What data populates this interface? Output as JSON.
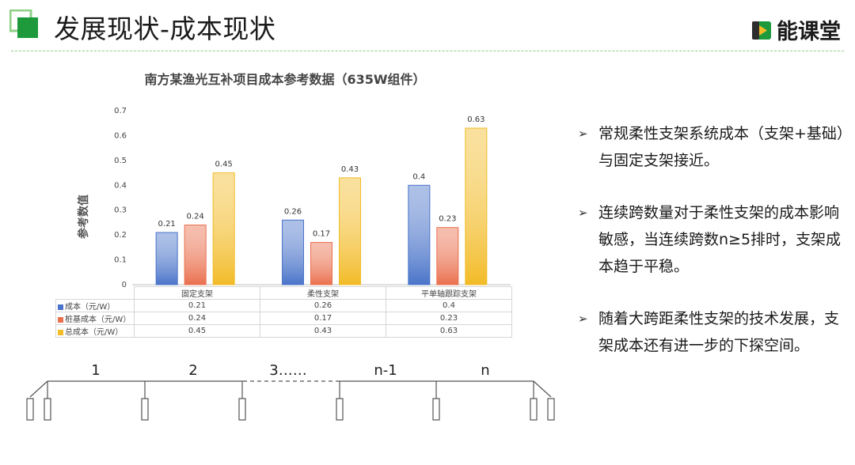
{
  "header": {
    "title": "发展现状-成本现状",
    "brand": "能课堂",
    "accent_green": "#1e9a3c",
    "light_green": "#8fcf86"
  },
  "chart_data": {
    "type": "bar",
    "title": "南方某渔光互补项目成本参考数据（635W组件）",
    "ylabel": "参考数值",
    "xlabel": "",
    "ylim": [
      0,
      0.7
    ],
    "yticks": [
      "0",
      "0.1",
      "0.2",
      "0.3",
      "0.4",
      "0.5",
      "0.6",
      "0.7"
    ],
    "grid": false,
    "categories": [
      "固定支架",
      "柔性支架",
      "平单轴跟踪支架"
    ],
    "series": [
      {
        "name": "成本（元/W）",
        "values": [
          0.21,
          0.26,
          0.4
        ],
        "labels": [
          "0.21",
          "0.26",
          "0.4"
        ],
        "color": "#4a74c9"
      },
      {
        "name": "桩基成本（元/W）",
        "values": [
          0.24,
          0.17,
          0.23
        ],
        "labels": [
          "0.24",
          "0.17",
          "0.23"
        ],
        "color": "#ea6f4d"
      },
      {
        "name": "总成本（元/W）",
        "values": [
          0.45,
          0.43,
          0.63
        ],
        "labels": [
          "0.45",
          "0.43",
          "0.63"
        ],
        "color": "#f2bb27"
      }
    ]
  },
  "bullets": [
    "常规柔性支架系统成本（支架+基础）与固定支架接近。",
    "连续跨数量对于柔性支架的成本影响敏感，当连续跨数n≥5排时，支架成本趋于平稳。",
    "随着大跨距柔性支架的技术发展，支架成本还有进一步的下探空间。"
  ],
  "span_diagram": {
    "labels": [
      "1",
      "2",
      "3……",
      "n-1",
      "n"
    ]
  }
}
